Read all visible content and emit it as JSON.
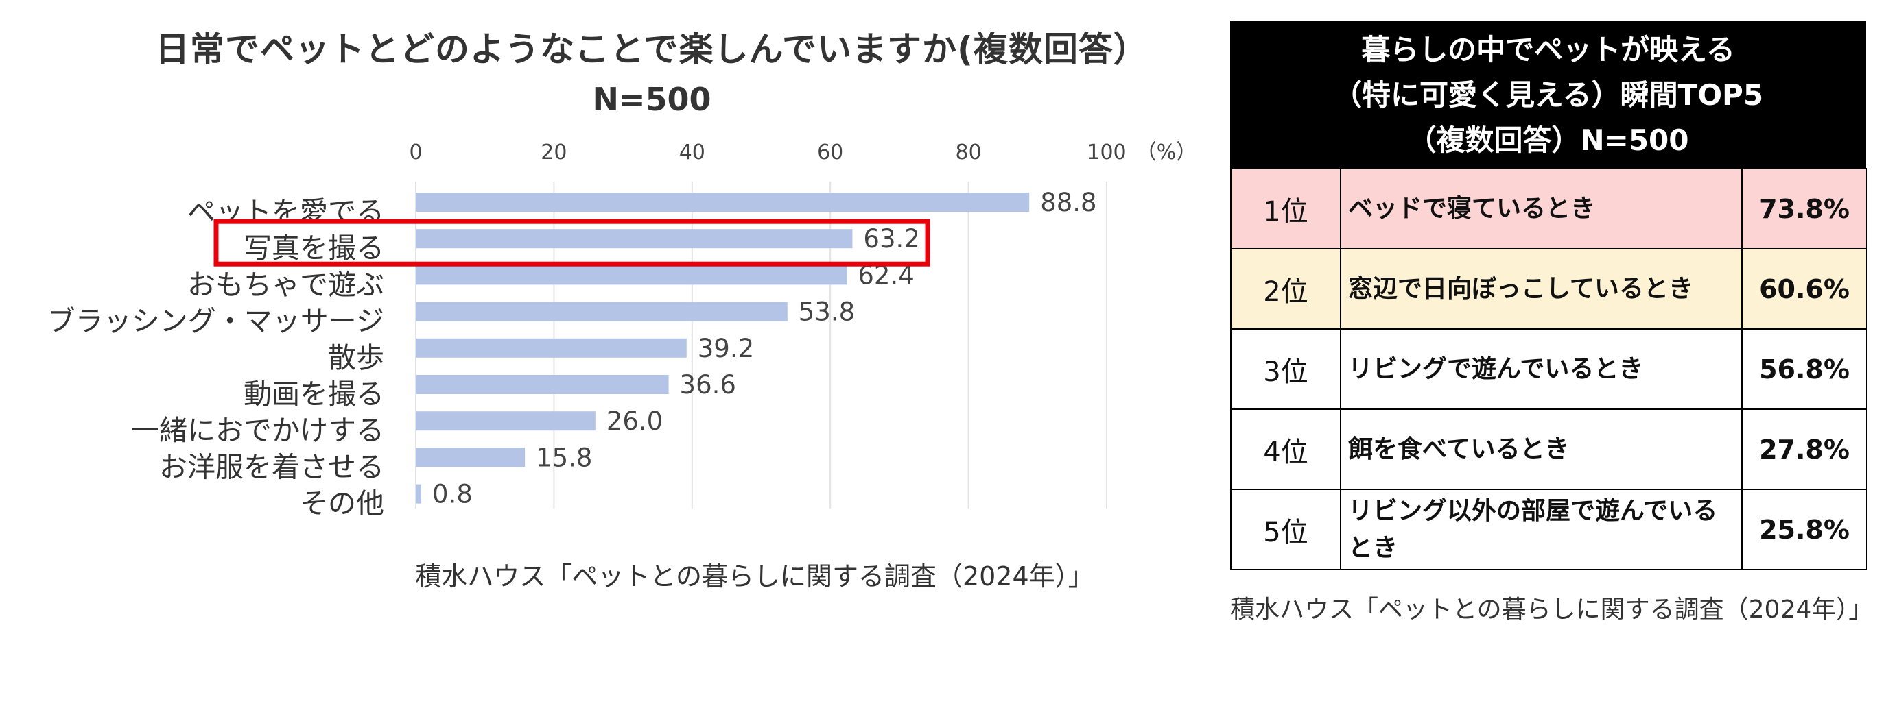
{
  "chart_data": {
    "type": "bar",
    "orientation": "horizontal",
    "title": "日常でペットとどのようなことで楽しんでいますか(複数回答）",
    "subtitle": "N=500",
    "unit_label": "（%）",
    "xlim": [
      0,
      100
    ],
    "xticks": [
      0,
      20,
      40,
      60,
      80,
      100
    ],
    "grid": true,
    "categories": [
      "ペットを愛でる",
      "写真を撮る",
      "おもちゃで遊ぶ",
      "ブラッシング・マッサージ",
      "散歩",
      "動画を撮る",
      "一緒におでかけする",
      "お洋服を着させる",
      "その他"
    ],
    "values": [
      88.8,
      63.2,
      62.4,
      53.8,
      39.2,
      36.6,
      26.0,
      15.8,
      0.8
    ],
    "value_labels": [
      "88.8",
      "63.2",
      "62.4",
      "53.8",
      "39.2",
      "36.6",
      "26.0",
      "15.8",
      "0.8"
    ],
    "highlighted_category": "写真を撮る",
    "colors": {
      "bar": "#b4c4e6",
      "highlight": "#e8000b",
      "grid": "#e3e3e3"
    },
    "source": "積水ハウス「ペットとの暮らしに関する調査（2024年）」"
  },
  "ranking": {
    "header_lines": [
      "暮らしの中でペットが映える",
      "（特に可愛く見える）瞬間TOP5",
      "（複数回答）N=500"
    ],
    "rows": [
      {
        "rank": "1位",
        "desc": "ベッドで寝ているとき",
        "pct": "73.8%",
        "bg": "#fcd4d4"
      },
      {
        "rank": "2位",
        "desc": "窓辺で日向ぼっこしているとき",
        "pct": "60.6%",
        "bg": "#fdf2d4"
      },
      {
        "rank": "3位",
        "desc": "リビングで遊んでいるとき",
        "pct": "56.8%",
        "bg": "#ffffff"
      },
      {
        "rank": "4位",
        "desc": "餌を食べているとき",
        "pct": "27.8%",
        "bg": "#ffffff"
      },
      {
        "rank": "5位",
        "desc": "リビング以外の部屋で遊んでいるとき",
        "pct": "25.8%",
        "bg": "#ffffff"
      }
    ],
    "source": "積水ハウス「ペットとの暮らしに関する調査（2024年）」"
  }
}
